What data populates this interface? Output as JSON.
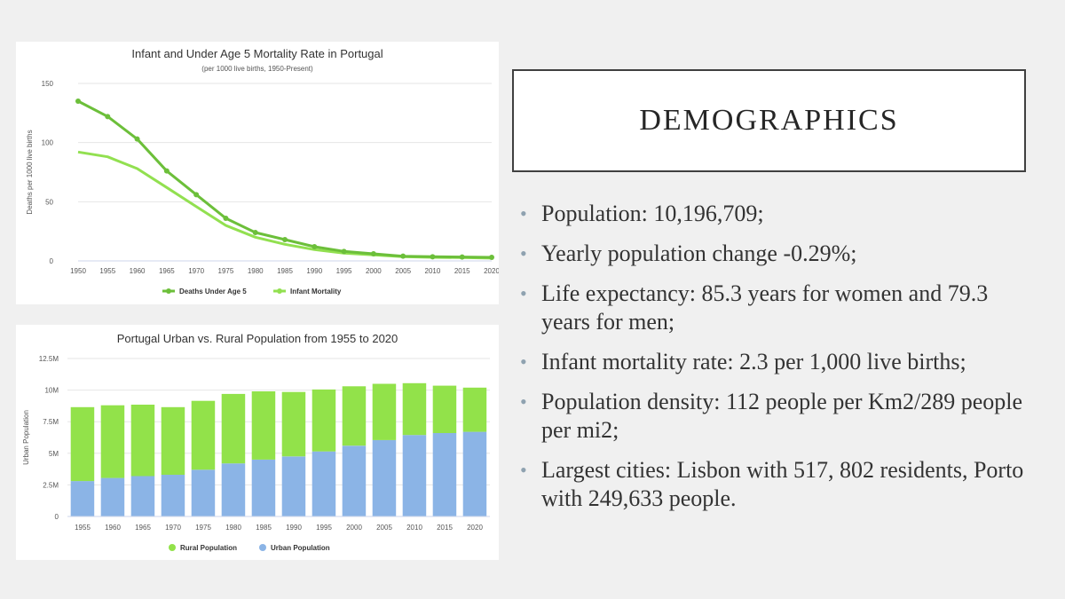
{
  "slide": {
    "heading": "DEMOGRAPHICS",
    "bullets": [
      "Population: 10,196,709;",
      "Yearly population change -0.29%;",
      "Life expectancy: 85.3 years for women and 79.3 years for men;",
      "Infant mortality rate: 2.3 per 1,000 live births;",
      "Population density: 112 people per Km2/289 people per mi2;",
      "Largest cities: Lisbon with 517, 802 residents, Porto with 249,633 people."
    ]
  },
  "chart_data": [
    {
      "type": "line",
      "title": "Infant and Under Age 5 Mortality Rate in Portugal",
      "subtitle": "(per 1000 live births, 1950-Present)",
      "xlabel": "",
      "ylabel": "Deaths per 1000 live births",
      "x": [
        1950,
        1955,
        1960,
        1965,
        1970,
        1975,
        1980,
        1985,
        1990,
        1995,
        2000,
        2005,
        2010,
        2015,
        2020
      ],
      "ylim": [
        0,
        150
      ],
      "yticks": [
        0,
        50,
        100,
        150
      ],
      "grid": true,
      "legend": "bottom-center",
      "series": [
        {
          "name": "Deaths Under Age 5",
          "color": "#6cbf3a",
          "markers": true,
          "values": [
            135,
            122,
            103,
            76,
            56,
            36,
            24,
            18,
            12,
            8,
            6,
            4,
            3.5,
            3.3,
            3
          ]
        },
        {
          "name": "Infant Mortality",
          "color": "#92e050",
          "markers": false,
          "values": [
            92,
            88,
            78,
            62,
            46,
            30,
            20,
            14,
            9.5,
            6.5,
            5,
            3.5,
            3,
            2.8,
            2.3
          ]
        }
      ]
    },
    {
      "type": "bar",
      "stacked": true,
      "title": "Portugal Urban vs. Rural Population from 1955 to 2020",
      "xlabel": "",
      "ylabel": "Urban Population",
      "categories": [
        "1955",
        "1960",
        "1965",
        "1970",
        "1975",
        "1980",
        "1985",
        "1990",
        "1995",
        "2000",
        "2005",
        "2010",
        "2015",
        "2020"
      ],
      "ylim": [
        0,
        12500000
      ],
      "yticks": [
        0,
        2500000,
        5000000,
        7500000,
        10000000,
        12500000
      ],
      "ytick_labels": [
        "0",
        "2.5M",
        "5M",
        "7.5M",
        "10M",
        "12.5M"
      ],
      "grid": true,
      "legend": "bottom-center",
      "series": [
        {
          "name": "Urban Population",
          "color": "#8bb4e6",
          "values": [
            2800000,
            3050000,
            3200000,
            3300000,
            3700000,
            4200000,
            4500000,
            4750000,
            5150000,
            5600000,
            6050000,
            6450000,
            6600000,
            6700000
          ]
        },
        {
          "name": "Rural Population",
          "color": "#92e24a",
          "values": [
            5850000,
            5750000,
            5650000,
            5350000,
            5450000,
            5500000,
            5400000,
            5100000,
            4900000,
            4700000,
            4450000,
            4100000,
            3750000,
            3500000
          ]
        }
      ],
      "legend_order": [
        "Rural Population",
        "Urban Population"
      ]
    }
  ]
}
